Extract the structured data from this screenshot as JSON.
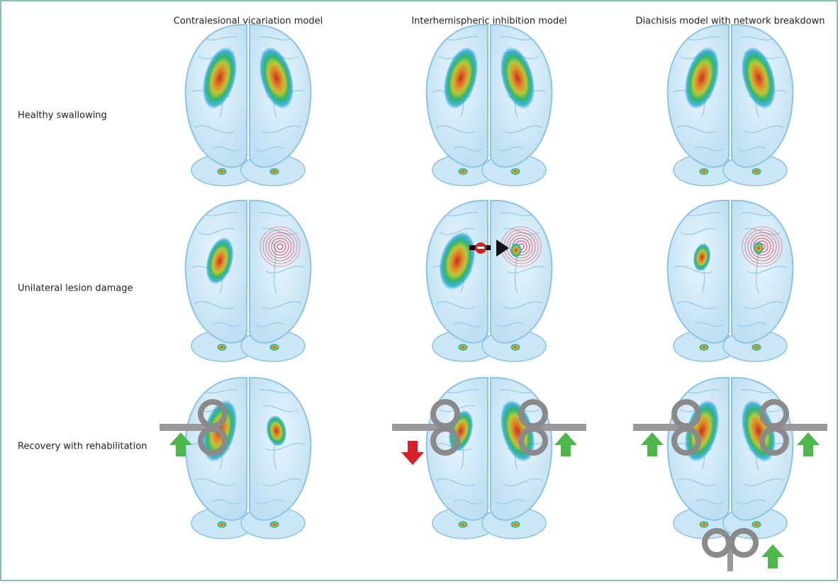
{
  "columns": [
    "Contralesional vicariation model",
    "Interhemispheric inhibition model",
    "Diachisis model with network breakdown"
  ],
  "rows": [
    "Healthy swallowing",
    "Unilateral lesion damage",
    "Recovery with rehabilitation"
  ]
}
